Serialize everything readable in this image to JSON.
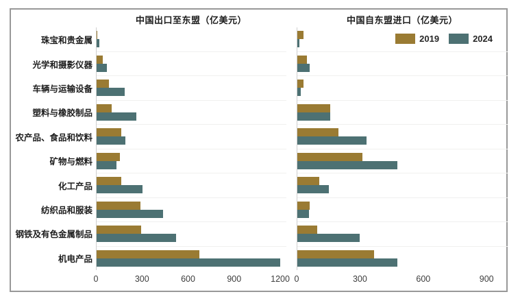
{
  "chart_data": {
    "type": "bar",
    "orientation": "horizontal",
    "unit": "亿美元",
    "categories": [
      "珠宝和贵金属",
      "光学和摄影仪器",
      "车辆与运输设备",
      "塑料与橡胶制品",
      "农产品、食品和饮料",
      "矿物与燃料",
      "化工产品",
      "纺织品和服装",
      "钢铁及有色金属制品",
      "机电产品"
    ],
    "colors": {
      "2019": "#9a7b33",
      "2024": "#4d7173"
    },
    "legend": {
      "entries": [
        "2019",
        "2024"
      ],
      "position": "top-right-of-right-chart"
    },
    "charts": [
      {
        "title": "中国出口至东盟（亿美元）",
        "xlim": [
          0,
          1240
        ],
        "ticks": [
          0,
          300,
          600,
          900,
          1200
        ],
        "series": [
          {
            "name": "2019",
            "values": [
              5,
              40,
              80,
              100,
              160,
              150,
              160,
              285,
              290,
              670
            ]
          },
          {
            "name": "2024",
            "values": [
              20,
              65,
              185,
              260,
              190,
              130,
              300,
              435,
              520,
              1200
            ]
          }
        ]
      },
      {
        "title": "中国自东盟进口（亿美元）",
        "xlim": [
          0,
          1000
        ],
        "ticks": [
          0,
          300,
          600,
          900
        ],
        "series": [
          {
            "name": "2019",
            "values": [
              30,
              45,
              30,
              155,
              195,
              310,
              105,
              60,
              95,
              365
            ]
          },
          {
            "name": "2024",
            "values": [
              10,
              60,
              15,
              155,
              330,
              475,
              150,
              55,
              295,
              475
            ]
          }
        ]
      }
    ],
    "grid": "light horizontal separators between category bands"
  }
}
